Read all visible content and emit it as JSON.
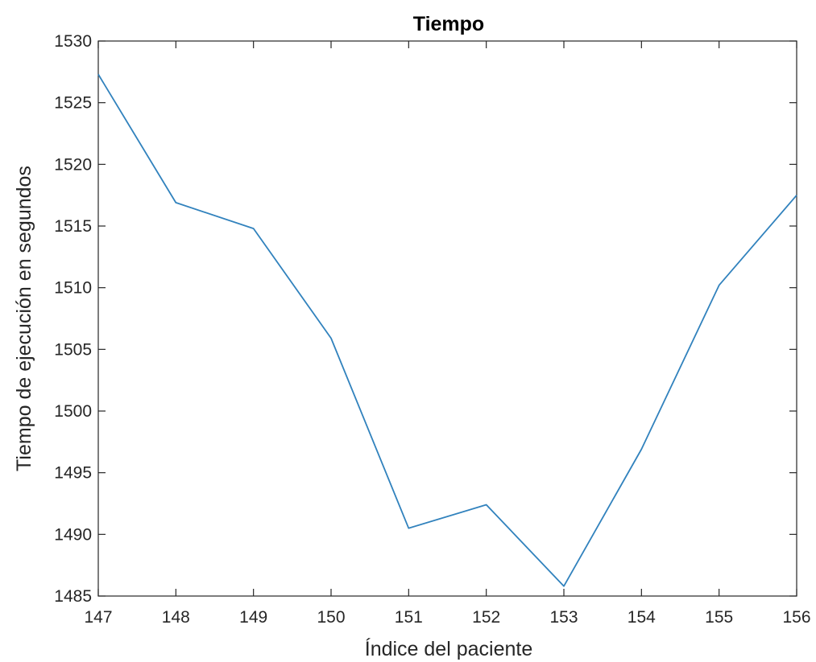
{
  "chart_data": {
    "type": "line",
    "title": "Tiempo",
    "xlabel": "Índice del paciente",
    "ylabel": "Tiempo de ejecución en segundos",
    "x": [
      147,
      148,
      149,
      150,
      151,
      152,
      153,
      154,
      155,
      156
    ],
    "series": [
      {
        "values": [
          1527.3,
          1516.9,
          1514.8,
          1505.9,
          1490.5,
          1492.4,
          1485.8,
          1496.9,
          1510.2,
          1517.5
        ],
        "color": "#3182BD"
      }
    ],
    "xlim": [
      147,
      156
    ],
    "ylim": [
      1485,
      1530
    ],
    "xticks": [
      "147",
      "148",
      "149",
      "150",
      "151",
      "152",
      "153",
      "154",
      "155",
      "156"
    ],
    "yticks": [
      "1485",
      "1490",
      "1495",
      "1500",
      "1505",
      "1510",
      "1515",
      "1520",
      "1525",
      "1530"
    ],
    "grid": false,
    "legend": "none"
  }
}
